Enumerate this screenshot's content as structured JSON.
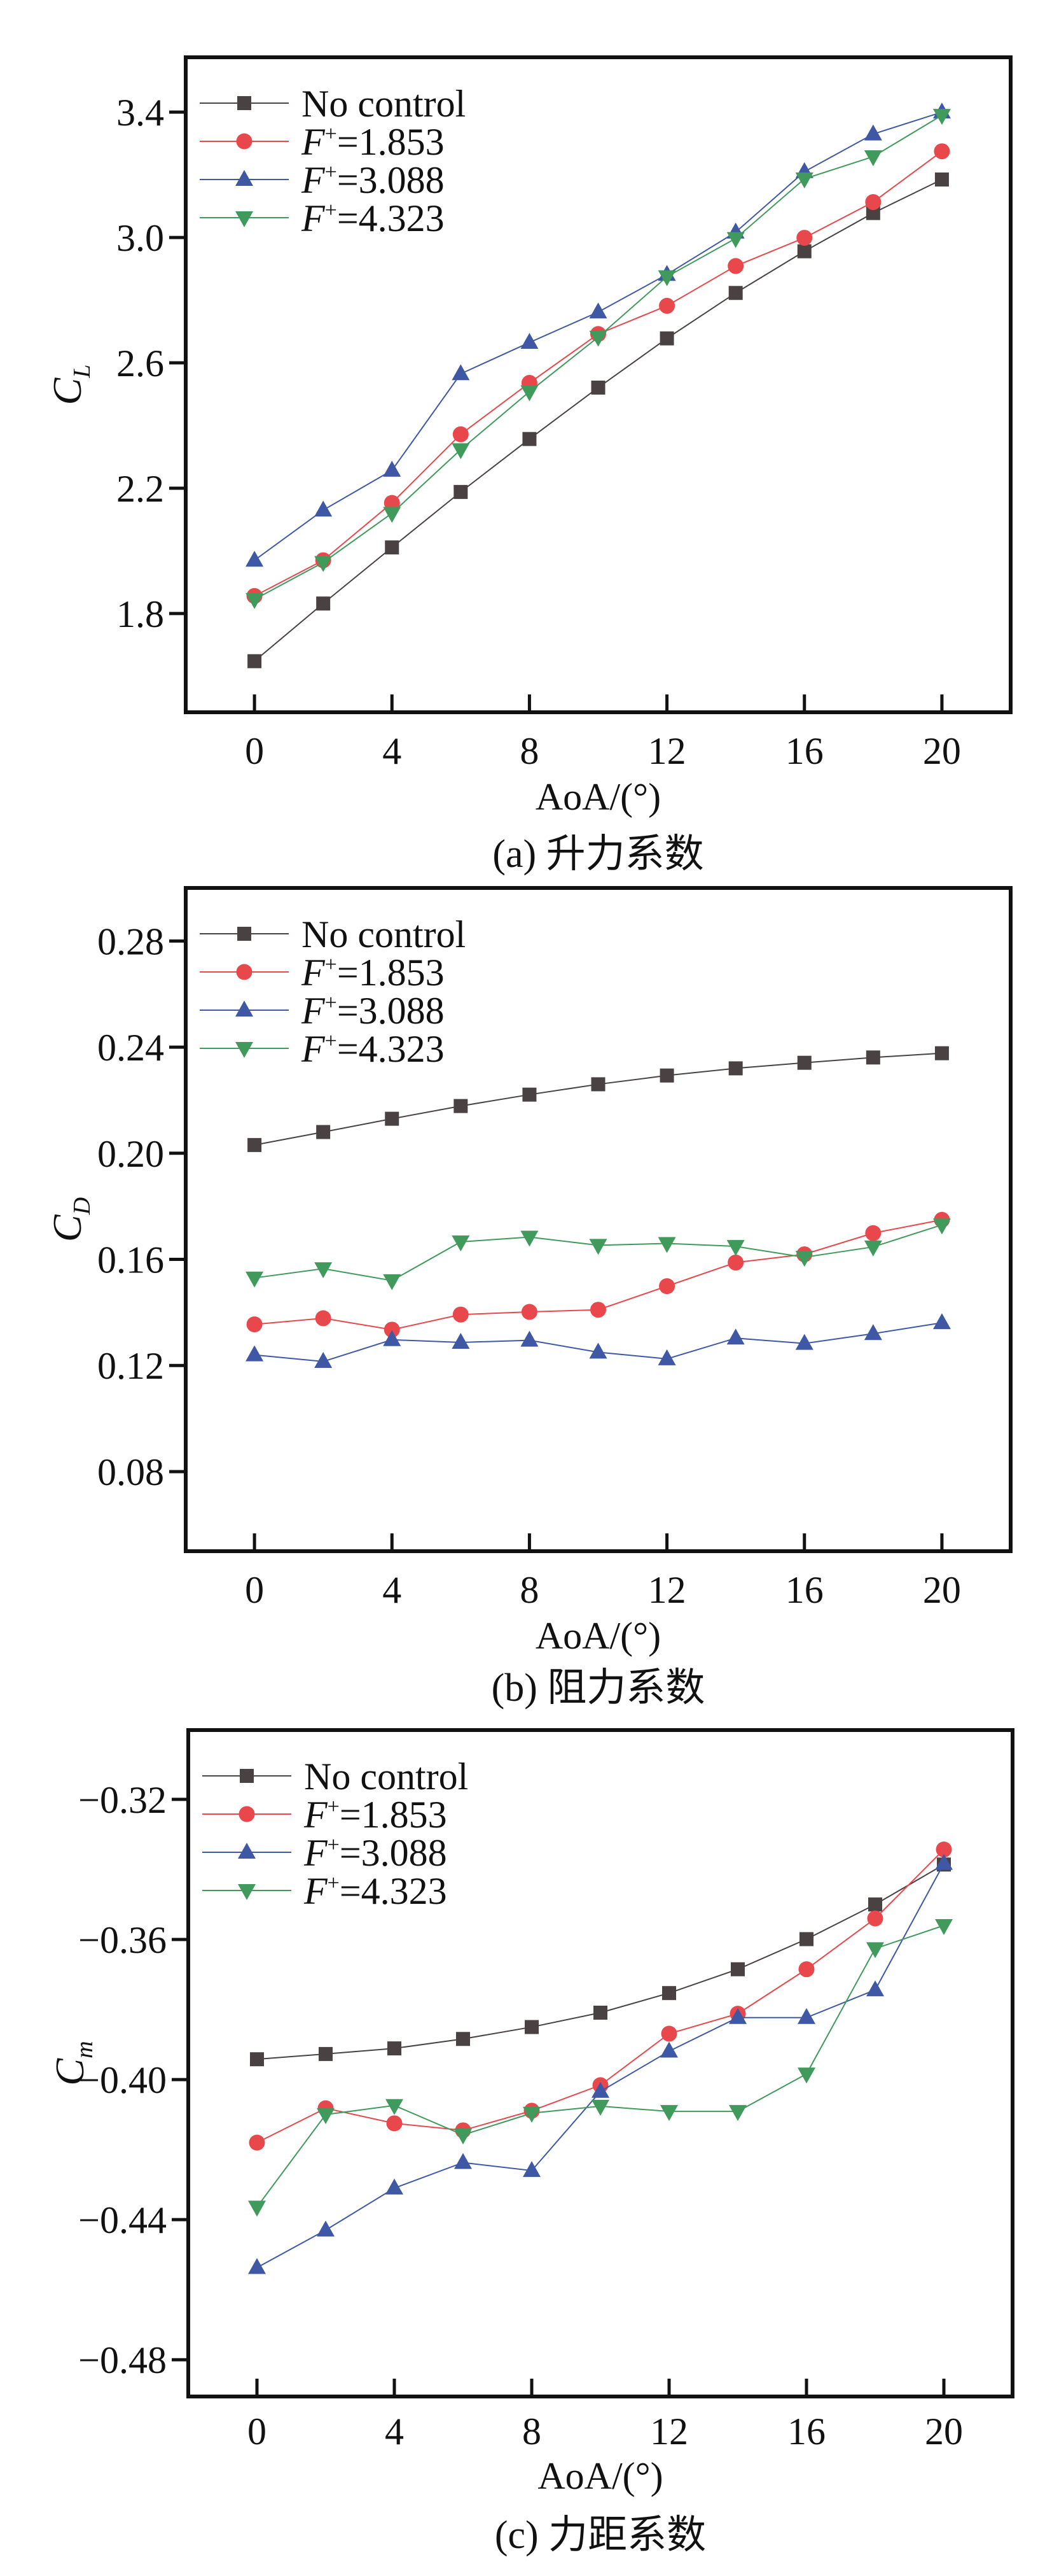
{
  "colors": {
    "No control": "#4a4242",
    "F+=1.853": "#e8474b",
    "F+=3.088": "#3e58a6",
    "F+=4.323": "#3f9a5c",
    "axis": "#111111"
  },
  "chart_data": [
    {
      "type": "line",
      "caption": "(a) 升力系数",
      "xlabel": "AoA/(°)",
      "ylabel": "C",
      "ylabel_sub": "L",
      "xlim": [
        -2,
        22
      ],
      "ylim": [
        1.485,
        3.575
      ],
      "xticks": [
        0,
        4,
        8,
        12,
        16,
        20
      ],
      "yticks": [
        "1.8",
        "2.2",
        "2.6",
        "3.0",
        "3.4"
      ],
      "legend": "top-left",
      "x": [
        0,
        2,
        4,
        6,
        8,
        10,
        12,
        14,
        16,
        18,
        20
      ],
      "series": [
        {
          "name": "No control",
          "marker": "square",
          "values": [
            1.648,
            1.832,
            2.011,
            2.188,
            2.357,
            2.521,
            2.678,
            2.823,
            2.956,
            3.078,
            3.185
          ]
        },
        {
          "name": "F+=1.853",
          "marker": "circle",
          "values": [
            1.856,
            1.97,
            2.153,
            2.372,
            2.536,
            2.692,
            2.782,
            2.909,
            2.999,
            3.113,
            3.275
          ]
        },
        {
          "name": "F+=3.088",
          "marker": "triangle-up",
          "values": [
            1.97,
            2.13,
            2.257,
            2.565,
            2.665,
            2.762,
            2.882,
            3.017,
            3.21,
            3.33,
            3.4
          ]
        },
        {
          "name": "F+=4.323",
          "marker": "triangle-down",
          "values": [
            1.845,
            1.963,
            2.12,
            2.323,
            2.508,
            2.682,
            2.875,
            2.997,
            3.187,
            3.258,
            3.39
          ]
        }
      ]
    },
    {
      "type": "line",
      "caption": "(b) 阻力系数",
      "xlabel": "AoA/(°)",
      "ylabel": "C",
      "ylabel_sub": "D",
      "xlim": [
        -2,
        22
      ],
      "ylim": [
        0.05,
        0.3
      ],
      "xticks": [
        0,
        4,
        8,
        12,
        16,
        20
      ],
      "yticks": [
        "0.08",
        "0.12",
        "0.16",
        "0.20",
        "0.24",
        "0.28"
      ],
      "legend": "top-left",
      "x": [
        0,
        2,
        4,
        6,
        8,
        10,
        12,
        14,
        16,
        18,
        20
      ],
      "series": [
        {
          "name": "No control",
          "marker": "square",
          "values": [
            0.2031,
            0.208,
            0.213,
            0.2178,
            0.2221,
            0.226,
            0.2293,
            0.232,
            0.2341,
            0.2361,
            0.2377
          ]
        },
        {
          "name": "F+=1.853",
          "marker": "circle",
          "values": [
            0.1355,
            0.1378,
            0.1335,
            0.1392,
            0.1402,
            0.141,
            0.1499,
            0.1588,
            0.1619,
            0.1699,
            0.1749
          ]
        },
        {
          "name": "F+=3.088",
          "marker": "triangle-up",
          "values": [
            0.124,
            0.1215,
            0.1297,
            0.1287,
            0.1295,
            0.125,
            0.1225,
            0.1303,
            0.1283,
            0.132,
            0.1361
          ]
        },
        {
          "name": "F+=4.323",
          "marker": "triangle-down",
          "values": [
            0.153,
            0.1565,
            0.152,
            0.1666,
            0.1684,
            0.1653,
            0.166,
            0.1649,
            0.1608,
            0.1647,
            0.173
          ]
        }
      ]
    },
    {
      "type": "line",
      "caption": "(c) 力距系数",
      "xlabel": "AoA/(°)",
      "ylabel": "C",
      "ylabel_sub": "m",
      "xlim": [
        -2,
        22
      ],
      "ylim": [
        -0.4905,
        -0.3002
      ],
      "xticks": [
        0,
        4,
        8,
        12,
        16,
        20
      ],
      "yticks": [
        "−0.48",
        "−0.44",
        "−0.40",
        "−0.36",
        "−0.32"
      ],
      "legend": "top-left",
      "x": [
        0,
        2,
        4,
        6,
        8,
        10,
        12,
        14,
        16,
        18,
        20
      ],
      "series": [
        {
          "name": "No control",
          "marker": "square",
          "values": [
            -0.3942,
            -0.3927,
            -0.3911,
            -0.3884,
            -0.385,
            -0.3809,
            -0.3753,
            -0.3685,
            -0.3599,
            -0.35,
            -0.3386
          ]
        },
        {
          "name": "F+=1.853",
          "marker": "circle",
          "values": [
            -0.418,
            -0.4082,
            -0.4125,
            -0.4145,
            -0.4089,
            -0.4016,
            -0.3869,
            -0.3812,
            -0.3685,
            -0.354,
            -0.3343
          ]
        },
        {
          "name": "F+=3.088",
          "marker": "triangle-up",
          "values": [
            -0.4537,
            -0.443,
            -0.431,
            -0.4237,
            -0.426,
            -0.4034,
            -0.3919,
            -0.3823,
            -0.3823,
            -0.3744,
            -0.3383
          ]
        },
        {
          "name": "F+=4.323",
          "marker": "triangle-down",
          "values": [
            -0.4364,
            -0.41,
            -0.4074,
            -0.4158,
            -0.4096,
            -0.4076,
            -0.4091,
            -0.4091,
            -0.3984,
            -0.3626,
            -0.356
          ]
        }
      ]
    }
  ]
}
